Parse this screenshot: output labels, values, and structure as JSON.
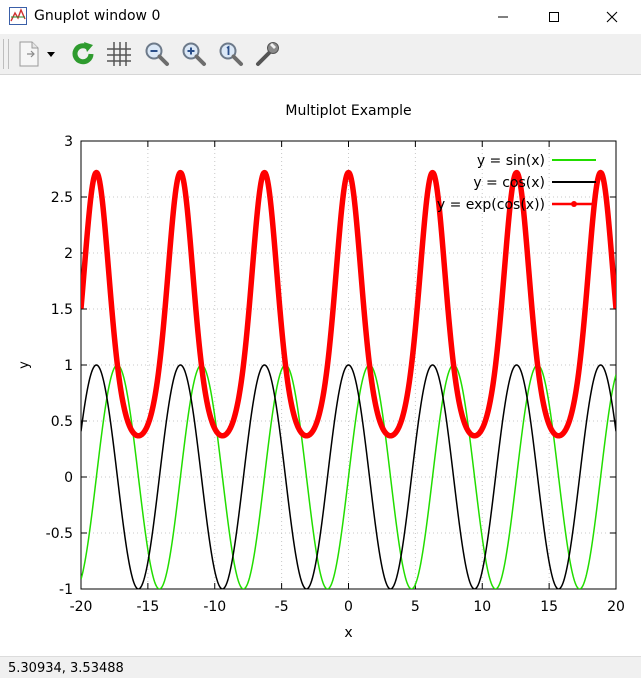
{
  "window": {
    "title": "Gnuplot window 0"
  },
  "toolbar": {
    "items": [
      {
        "name": "export-icon"
      },
      {
        "name": "dropdown-arrow-icon"
      },
      {
        "name": "replot-icon"
      },
      {
        "name": "grid-icon"
      },
      {
        "name": "zoom-out-icon"
      },
      {
        "name": "zoom-in-icon"
      },
      {
        "name": "zoom-reset-icon"
      },
      {
        "name": "options-wrench-icon"
      }
    ]
  },
  "status": {
    "coords": "5.30934,  3.53488"
  },
  "chart_data": {
    "type": "line",
    "title": "Multiplot Example",
    "xlabel": "x",
    "ylabel": "y",
    "xlim": [
      -20,
      20
    ],
    "ylim": [
      -1,
      3
    ],
    "xticks": [
      "-20",
      "-15",
      "-10",
      "-5",
      "0",
      "5",
      "10",
      "15",
      "20"
    ],
    "yticks": [
      "-1",
      "-0.5",
      "0",
      "0.5",
      "1",
      "1.5",
      "2",
      "2.5",
      "3"
    ],
    "grid": true,
    "legend_position": "top-right",
    "series": [
      {
        "name": "y = sin(x)",
        "function": "sin(x)",
        "color": "#22dd00"
      },
      {
        "name": "y = cos(x)",
        "function": "cos(x)",
        "color": "#000000"
      },
      {
        "name": "y = exp(cos(x))",
        "function": "exp(cos(x))",
        "color": "#ff0000"
      }
    ]
  }
}
